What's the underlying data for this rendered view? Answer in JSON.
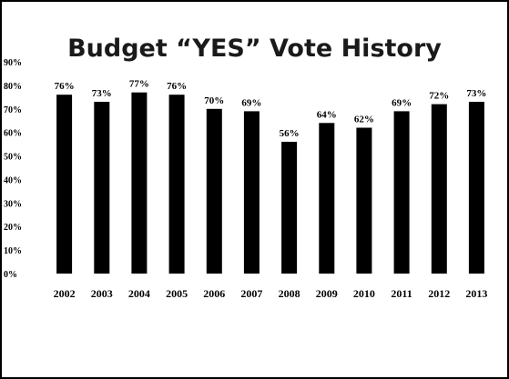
{
  "chart_data": {
    "type": "bar",
    "title": "Budget “YES” Vote History",
    "xlabel": "",
    "ylabel": "",
    "categories": [
      "2002",
      "2003",
      "2004",
      "2005",
      "2006",
      "2007",
      "2008",
      "2009",
      "2010",
      "2011",
      "2012",
      "2013"
    ],
    "values": [
      76,
      73,
      77,
      76,
      70,
      69,
      56,
      64,
      62,
      69,
      72,
      73
    ],
    "data_labels": [
      "76%",
      "73%",
      "77%",
      "76%",
      "70%",
      "69%",
      "56%",
      "64%",
      "62%",
      "69%",
      "72%",
      "73%"
    ],
    "yticks": [
      0,
      10,
      20,
      30,
      40,
      50,
      60,
      70,
      80,
      90
    ],
    "ytick_labels": [
      "0%",
      "10%",
      "20%",
      "30%",
      "40%",
      "50%",
      "60%",
      "70%",
      "80%",
      "90%"
    ],
    "ylim": [
      0,
      90
    ],
    "grid": false,
    "legend": "none",
    "bar_color": "#000000"
  }
}
